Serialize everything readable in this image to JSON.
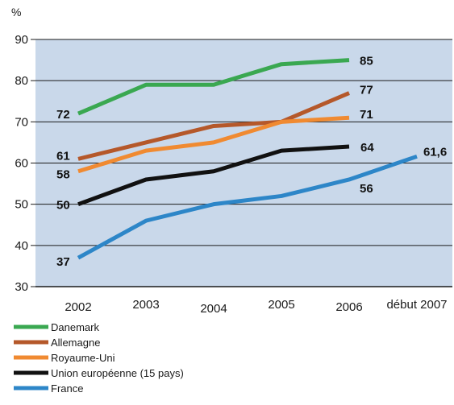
{
  "chart_data": {
    "type": "line",
    "y_unit": "%",
    "categories": [
      "2002",
      "2003",
      "2004",
      "2005",
      "2006",
      "début 2007"
    ],
    "ylim": [
      30,
      90
    ],
    "yticks": [
      30,
      40,
      50,
      60,
      70,
      80,
      90
    ],
    "grid": "horizontal",
    "background_color": "#c9d8ea",
    "legend_position": "bottom-left",
    "series": [
      {
        "name": "Danemark",
        "color": "#3aa851",
        "values": [
          72,
          79,
          79,
          84,
          85,
          null
        ],
        "labels": [
          {
            "index": 0,
            "text": "72"
          },
          {
            "index": 4,
            "text": "85"
          }
        ]
      },
      {
        "name": "Allemagne",
        "color": "#b5582a",
        "values": [
          61,
          65,
          69,
          70,
          77,
          null
        ],
        "labels": [
          {
            "index": 0,
            "text": "61"
          },
          {
            "index": 4,
            "text": "77"
          }
        ]
      },
      {
        "name": "Royaume-Uni",
        "color": "#f08a31",
        "values": [
          58,
          63,
          65,
          70,
          71,
          null
        ],
        "labels": [
          {
            "index": 0,
            "text": "58"
          },
          {
            "index": 4,
            "text": "71"
          }
        ]
      },
      {
        "name": "Union européenne (15 pays)",
        "color": "#111111",
        "values": [
          50,
          56,
          58,
          63,
          64,
          null
        ],
        "labels": [
          {
            "index": 0,
            "text": "50"
          },
          {
            "index": 4,
            "text": "64"
          }
        ]
      },
      {
        "name": "France",
        "color": "#2d86c8",
        "values": [
          37,
          46,
          50,
          52,
          56,
          61.6
        ],
        "labels": [
          {
            "index": 0,
            "text": "37"
          },
          {
            "index": 4,
            "text": "56"
          },
          {
            "index": 5,
            "text": "61,6"
          }
        ]
      }
    ]
  }
}
